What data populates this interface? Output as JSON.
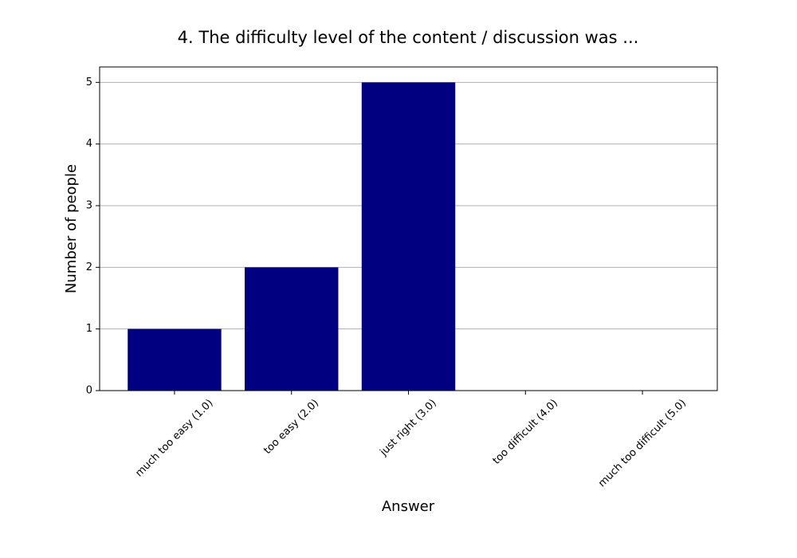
{
  "chart_data": {
    "type": "bar",
    "title": "4. The difficulty level of the content / discussion was ...",
    "x_label": "Answer",
    "y_label": "Number of people",
    "categories": [
      "much too easy (1.0)",
      "too easy (2.0)",
      "just right (3.0)",
      "too difficult (4.0)",
      "much too difficult (5.0)"
    ],
    "values": [
      1,
      2,
      5,
      0,
      0
    ],
    "color": "#000080",
    "ylim": [
      0,
      5.25
    ],
    "yticks": [
      0,
      1,
      2,
      3,
      4,
      5
    ],
    "grid": true
  }
}
